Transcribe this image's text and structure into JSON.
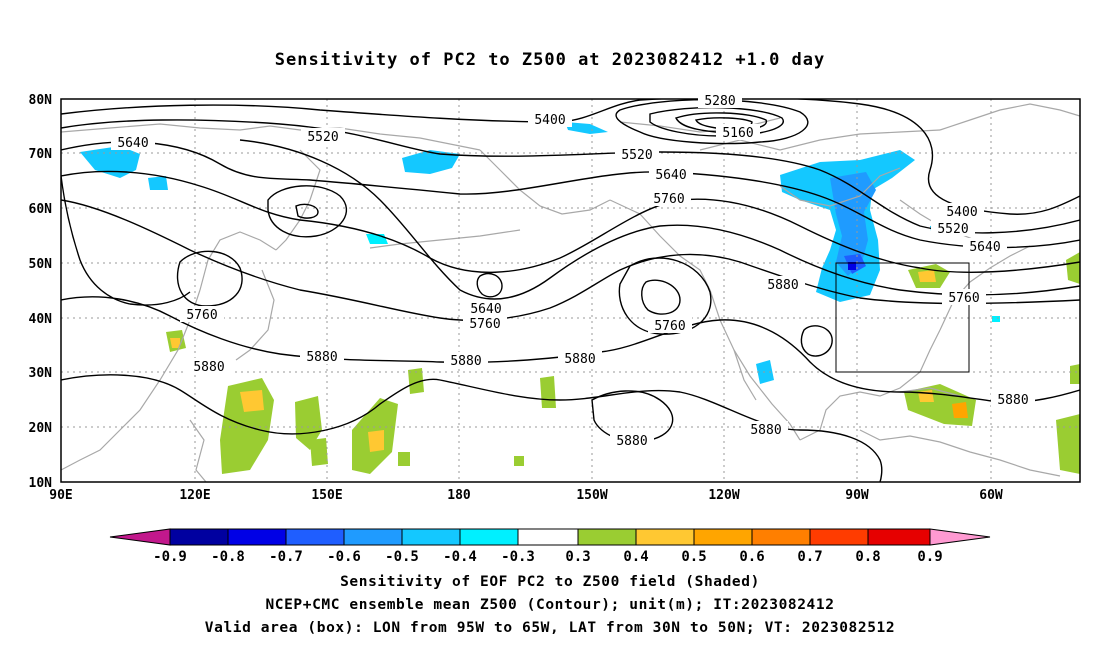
{
  "title": "Sensitivity of PC2 to Z500 at 2023082412 +1.0 day",
  "lat_labels": [
    "80N",
    "70N",
    "60N",
    "50N",
    "40N",
    "30N",
    "20N",
    "10N"
  ],
  "lon_labels": [
    "90E",
    "120E",
    "150E",
    "180",
    "150W",
    "120W",
    "90W",
    "60W"
  ],
  "contour_labels": [
    "5640",
    "5520",
    "5400",
    "5280",
    "5160",
    "5520",
    "5640",
    "5760",
    "5400",
    "5520",
    "5640",
    "5760",
    "5880",
    "5640",
    "5760",
    "5760",
    "5760",
    "5880",
    "5880",
    "5880",
    "5880",
    "5880",
    "5880",
    "5880"
  ],
  "colorbar": {
    "labels": [
      "-0.9",
      "-0.8",
      "-0.7",
      "-0.6",
      "-0.5",
      "-0.4",
      "-0.3",
      "0.3",
      "0.4",
      "0.5",
      "0.6",
      "0.7",
      "0.8",
      "0.9"
    ],
    "colors": [
      "#c2188c",
      "#0000a0",
      "#0000e6",
      "#1f5eff",
      "#1f9bff",
      "#14c8ff",
      "#00f0ff",
      "#ffffff",
      "#9acd32",
      "#ffc832",
      "#ffa500",
      "#ff7f00",
      "#ff3c00",
      "#e60000",
      "#ff9ad2"
    ]
  },
  "valid_box": {
    "lon_from": "95W",
    "lon_to": "65W",
    "lat_from": "30N",
    "lat_to": "50N"
  },
  "captions": {
    "line1": "Sensitivity of EOF PC2 to Z500 field (Shaded)",
    "line2": "NCEP+CMC ensemble mean Z500 (Contour); unit(m); IT:2023082412",
    "line3": "Valid area (box): LON from 95W to 65W, LAT from 30N to 50N; VT: 2023082512"
  }
}
